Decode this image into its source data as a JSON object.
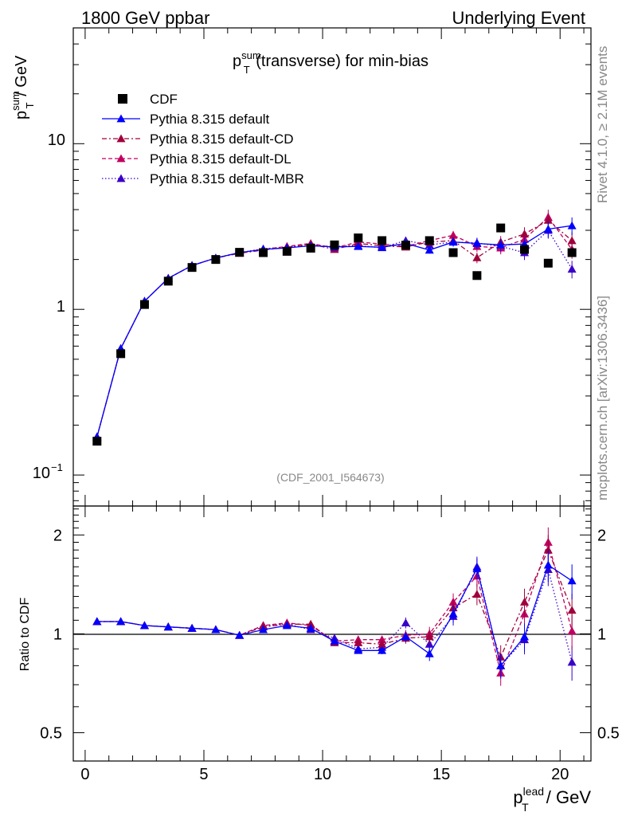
{
  "header": {
    "left": "1800 GeV ppbar",
    "right": "Underlying Event"
  },
  "side_labels": {
    "rivet": "Rivet 4.1.0, ≥ 2.1M events",
    "mcplots": "mcplots.cern.ch [arXiv:1306.3436]"
  },
  "colors": {
    "cdf": "#000000",
    "default": "#0000ff",
    "cd": "#a0003c",
    "dl": "#c00060",
    "mbr": "#3a00c8"
  },
  "chart_data": [
    {
      "type": "scatter",
      "panel": "main",
      "title_main": "p",
      "title_sup": "sum",
      "title_sub": "T",
      "title_rest": " (transverse) for min-bias",
      "ylabel_main": "p",
      "ylabel_sup": "sum",
      "ylabel_sub": "T",
      "ylabel_rest": " / GeV",
      "yscale": "log",
      "ylim": [
        0.065,
        50
      ],
      "xlim": [
        -0.5,
        21.3
      ],
      "ytick_labels": [
        "10",
        "1",
        "10"
      ],
      "ytick_minus1": "−1",
      "watermark": "(CDF_2001_I564673)",
      "legend_position": "top-left",
      "x": [
        0.5,
        1.5,
        2.5,
        3.5,
        4.5,
        5.5,
        6.5,
        7.5,
        8.5,
        9.5,
        10.5,
        11.5,
        12.5,
        13.5,
        14.5,
        15.5,
        16.5,
        17.5,
        18.5,
        19.5,
        20.5
      ],
      "series": [
        {
          "name": "CDF",
          "key": "cdf",
          "style": "square",
          "values": [
            0.16,
            0.54,
            1.07,
            1.48,
            1.79,
            2.0,
            2.21,
            2.2,
            2.24,
            2.34,
            2.45,
            2.7,
            2.6,
            2.44,
            2.6,
            2.2,
            1.6,
            3.1,
            2.3,
            1.9,
            2.2
          ]
        },
        {
          "name": "Pythia 8.315 default",
          "key": "default",
          "style": "solid",
          "values": [
            0.17,
            0.58,
            1.12,
            1.54,
            1.84,
            2.04,
            2.2,
            2.3,
            2.35,
            2.42,
            2.38,
            2.4,
            2.37,
            2.5,
            2.28,
            2.55,
            2.5,
            2.45,
            2.48,
            3.05,
            3.2
          ]
        },
        {
          "name": "Pythia 8.315 default-CD",
          "key": "cd",
          "style": "dashdot",
          "values": [
            0.17,
            0.58,
            1.12,
            1.54,
            1.84,
            2.04,
            2.18,
            2.28,
            2.37,
            2.48,
            2.3,
            2.5,
            2.42,
            2.38,
            2.55,
            2.6,
            2.05,
            2.55,
            2.85,
            3.45,
            2.6
          ]
        },
        {
          "name": "Pythia 8.315 default-DL",
          "key": "dl",
          "style": "dashed",
          "values": [
            0.17,
            0.58,
            1.12,
            1.54,
            1.84,
            2.04,
            2.2,
            2.3,
            2.4,
            2.5,
            2.35,
            2.55,
            2.48,
            2.4,
            2.6,
            2.8,
            2.4,
            2.35,
            2.65,
            3.6,
            2.3
          ]
        },
        {
          "name": "Pythia 8.315 default-MBR",
          "key": "mbr",
          "style": "dotted",
          "values": [
            0.17,
            0.58,
            1.12,
            1.54,
            1.84,
            2.04,
            2.2,
            2.32,
            2.38,
            2.42,
            2.4,
            2.42,
            2.36,
            2.6,
            2.45,
            2.55,
            2.52,
            2.4,
            2.2,
            3.0,
            1.75
          ]
        }
      ]
    },
    {
      "type": "line",
      "panel": "ratio",
      "ylabel": "Ratio to CDF",
      "yscale": "log",
      "ylim": [
        0.41,
        2.45
      ],
      "xlim": [
        -0.5,
        21.3
      ],
      "yticks": [
        0.5,
        1,
        2
      ],
      "ytick_labels": [
        "0.5",
        "1",
        "2"
      ],
      "xticks": [
        0,
        5,
        10,
        15,
        20
      ],
      "xtick_labels": [
        "0",
        "5",
        "10",
        "15",
        "20"
      ],
      "xlabel_main": "p",
      "xlabel_sup": "lead",
      "xlabel_sub": "T",
      "xlabel_rest": " / GeV",
      "x": [
        0.5,
        1.5,
        2.5,
        3.5,
        4.5,
        5.5,
        6.5,
        7.5,
        8.5,
        9.5,
        10.5,
        11.5,
        12.5,
        13.5,
        14.5,
        15.5,
        16.5,
        17.5,
        18.5,
        19.5,
        20.5
      ],
      "series": [
        {
          "name": "Pythia 8.315 default",
          "key": "default",
          "style": "solid",
          "values": [
            1.09,
            1.09,
            1.06,
            1.05,
            1.04,
            1.03,
            0.99,
            1.03,
            1.06,
            1.04,
            0.95,
            0.89,
            0.89,
            0.98,
            0.87,
            1.15,
            1.58,
            0.8,
            0.98,
            1.62,
            1.45
          ]
        },
        {
          "name": "Pythia 8.315 default-CD",
          "key": "cd",
          "style": "dashdot",
          "values": [
            1.09,
            1.09,
            1.06,
            1.05,
            1.04,
            1.03,
            0.99,
            1.05,
            1.07,
            1.07,
            0.94,
            0.94,
            0.93,
            0.97,
            0.98,
            1.2,
            1.32,
            0.85,
            1.25,
            1.8,
            1.18
          ]
        },
        {
          "name": "Pythia 8.315 default-DL",
          "key": "dl",
          "style": "dashed",
          "values": [
            1.09,
            1.09,
            1.06,
            1.05,
            1.04,
            1.03,
            0.99,
            1.06,
            1.08,
            1.06,
            0.95,
            0.96,
            0.96,
            0.99,
            1.0,
            1.25,
            1.5,
            0.76,
            1.15,
            1.9,
            1.02
          ]
        },
        {
          "name": "Pythia 8.315 default-MBR",
          "key": "mbr",
          "style": "dotted",
          "values": [
            1.09,
            1.09,
            1.06,
            1.05,
            1.04,
            1.03,
            0.99,
            1.06,
            1.07,
            1.03,
            0.97,
            0.9,
            0.91,
            1.08,
            0.93,
            1.13,
            1.6,
            0.8,
            0.96,
            1.57,
            0.82
          ]
        }
      ]
    }
  ]
}
